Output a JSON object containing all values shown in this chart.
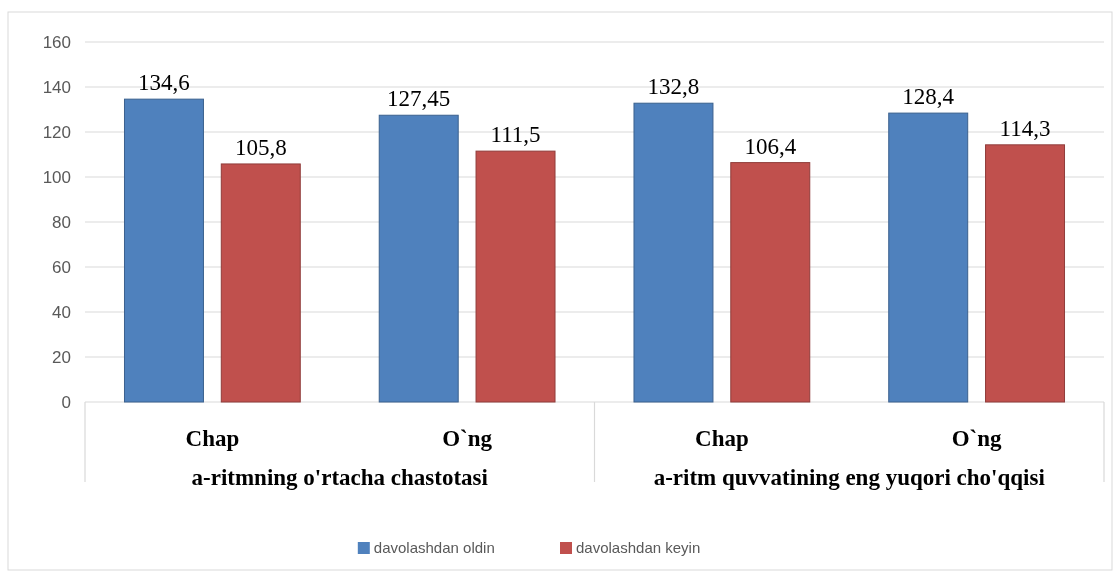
{
  "chart_data": {
    "type": "bar",
    "categories": [
      "Chap",
      "O`ng",
      "Chap",
      "O`ng"
    ],
    "annotations": [
      "a-ritmning o'rtacha chastotasi",
      "a-ritm quvvatining eng yuqori cho'qqisi"
    ],
    "series": [
      {
        "name": "davolashdan oldin",
        "color": "#4f81bd",
        "values": [
          134.6,
          127.45,
          132.8,
          128.4
        ],
        "value_labels": [
          "134,6",
          "127,45",
          "132,8",
          "128,4"
        ]
      },
      {
        "name": "davolashdan keyin",
        "color": "#c0504d",
        "values": [
          105.8,
          111.5,
          106.4,
          114.3
        ],
        "value_labels": [
          "105,8",
          "111,5",
          "106,4",
          "114,3"
        ]
      }
    ],
    "ylim": [
      0,
      160
    ],
    "yticks": [
      0,
      20,
      40,
      60,
      80,
      100,
      120,
      140,
      160
    ],
    "grid": "y",
    "legend": "bottom"
  }
}
